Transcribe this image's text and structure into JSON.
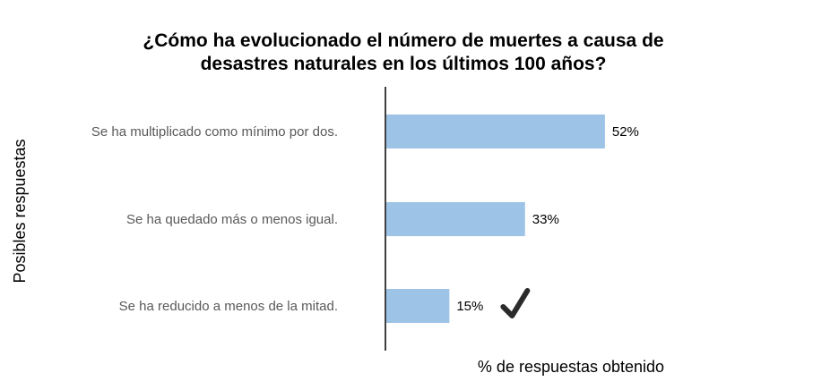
{
  "chart_data": {
    "type": "bar",
    "orientation": "horizontal",
    "title": "¿Cómo ha evolucionado el número de muertes a causa de desastres naturales en los últimos 100 años?",
    "title_lines": [
      "¿Cómo ha evolucionado el número de muertes a causa de",
      "desastres naturales en los últimos 100 años?"
    ],
    "categories": [
      "Se ha multiplicado como mínimo por dos.",
      "Se ha quedado más o menos igual.",
      "Se ha reducido a menos de la mitad."
    ],
    "values": [
      52,
      33,
      15
    ],
    "data_labels": [
      "52%",
      "33%",
      "15%"
    ],
    "xlabel": "% de respuestas obtenido",
    "ylabel": "Posibles respuestas",
    "xlim": [
      0,
      100
    ],
    "grid": false,
    "legend": "none",
    "bar_color": "#9DC3E6",
    "axis_color": "#000000",
    "correct_answer_index": 2,
    "correct_marker_icon": "check-mark-icon"
  }
}
